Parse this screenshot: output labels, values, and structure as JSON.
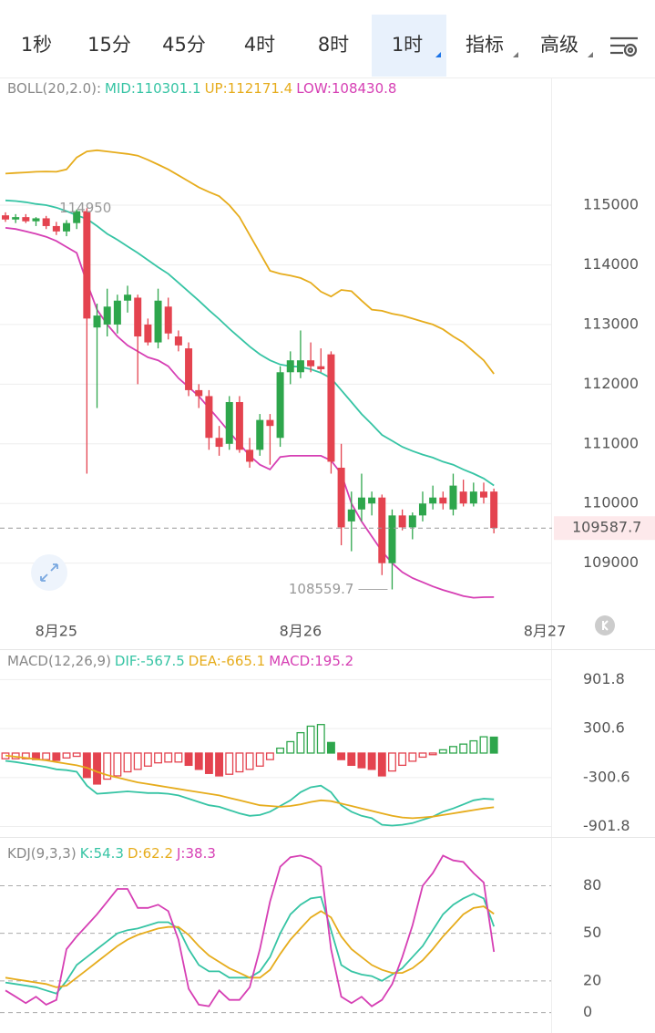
{
  "tabs": [
    "1秒",
    "15分",
    "45分",
    "4时",
    "8时",
    "1时",
    "指标",
    "高级"
  ],
  "chart_data": [
    {
      "type": "candlestick",
      "title": "BOLL(20,2.0):",
      "categories": [
        null,
        null,
        null,
        null,
        null,
        "8月25",
        null,
        null,
        null,
        null,
        null,
        null,
        null,
        null,
        null,
        null,
        null,
        null,
        null,
        null,
        null,
        null,
        null,
        null,
        null,
        null,
        null,
        null,
        null,
        "8月26",
        null,
        null,
        null,
        null,
        null,
        null,
        null,
        null,
        null,
        null,
        null,
        null,
        null,
        null,
        null,
        null,
        null,
        null,
        null,
        null,
        null,
        null,
        null,
        "8月27"
      ],
      "open": [
        114830,
        114760,
        114800,
        114730,
        114780,
        114650,
        114560,
        114700,
        114900,
        112950,
        113000,
        113000,
        113400,
        113450,
        113000,
        112700,
        113300,
        112800,
        112600,
        111900,
        111800,
        111100,
        111000,
        111700,
        110900,
        110900,
        111400,
        111100,
        112200,
        112200,
        112400,
        112300,
        112500,
        110600,
        109700,
        109900,
        110000,
        110100,
        109000,
        109800,
        109600,
        109800,
        110000,
        110100,
        109900,
        110200,
        110000,
        110200,
        110200,
        null,
        null,
        null,
        null,
        null
      ],
      "high": [
        114880,
        114850,
        114850,
        114800,
        114820,
        114720,
        114750,
        114928.6,
        114950,
        113350,
        113600,
        113500,
        113650,
        113500,
        113100,
        113600,
        113450,
        112900,
        112700,
        112000,
        111900,
        111300,
        111800,
        111800,
        111100,
        111500,
        111500,
        112300,
        112550,
        112900,
        112700,
        112600,
        112550,
        111000,
        110200,
        110500,
        110200,
        110150,
        109900,
        109900,
        109850,
        110200,
        110300,
        110200,
        110500,
        110400,
        110350,
        110350,
        110250,
        null,
        null,
        null,
        null,
        null
      ],
      "low": [
        114720,
        114700,
        114700,
        114650,
        114600,
        114500,
        114480,
        114600,
        110500,
        111600,
        112800,
        112850,
        113200,
        112000,
        112650,
        112600,
        112750,
        112550,
        111800,
        111600,
        110900,
        110800,
        110900,
        110850,
        110600,
        110800,
        110650,
        110950,
        112000,
        112100,
        112200,
        112200,
        110500,
        109300,
        109200,
        109700,
        109800,
        108800,
        108559.7,
        109550,
        109400,
        109700,
        109900,
        109900,
        109800,
        109950,
        109950,
        110000,
        109500,
        null,
        null,
        null,
        null,
        null
      ],
      "close": [
        114760,
        114800,
        114730,
        114780,
        114650,
        114560,
        114700,
        114900,
        113100,
        113150,
        113300,
        113400,
        113500,
        112800,
        112700,
        113400,
        112850,
        112650,
        111900,
        111800,
        111100,
        110950,
        111700,
        110900,
        110700,
        111400,
        111300,
        112200,
        112400,
        112400,
        112300,
        112250,
        110700,
        109600,
        109900,
        110100,
        110100,
        109000,
        109800,
        109600,
        109800,
        110000,
        110100,
        110000,
        110300,
        110000,
        110200,
        110100,
        109587.7,
        null,
        null,
        null,
        null,
        null
      ],
      "up_color": "#2ea64c",
      "down_color": "#e4434f",
      "series": [
        {
          "name": "MID:",
          "color": "#36c4a4",
          "values": [
            115080,
            115070,
            115050,
            115020,
            115000,
            114960,
            114900,
            114830,
            114770,
            114650,
            114520,
            114420,
            114310,
            114200,
            114080,
            113960,
            113850,
            113700,
            113550,
            113400,
            113240,
            113090,
            112930,
            112780,
            112630,
            112500,
            112400,
            112330,
            112300,
            112290,
            112250,
            112190,
            112100,
            111900,
            111700,
            111500,
            111330,
            111150,
            111050,
            110950,
            110880,
            110820,
            110770,
            110700,
            110650,
            110570,
            110500,
            110420,
            110301.1,
            null,
            null,
            null,
            null,
            null
          ]
        },
        {
          "name": "UP:",
          "color": "#e6ac1c",
          "values": [
            115530,
            115540,
            115550,
            115560,
            115565,
            115560,
            115600,
            115800,
            115900,
            115920,
            115900,
            115880,
            115860,
            115830,
            115760,
            115680,
            115600,
            115500,
            115400,
            115300,
            115220,
            115150,
            115000,
            114800,
            114500,
            114200,
            113900,
            113850,
            113820,
            113780,
            113700,
            113550,
            113470,
            113580,
            113560,
            113400,
            113250,
            113230,
            113180,
            113150,
            113100,
            113050,
            113000,
            112920,
            112800,
            112700,
            112550,
            112400,
            112171.4,
            null,
            null,
            null,
            null,
            null
          ]
        },
        {
          "name": "LOW:",
          "color": "#d63fb4",
          "values": [
            114620,
            114600,
            114560,
            114520,
            114470,
            114400,
            114300,
            114200,
            113700,
            113250,
            113000,
            112800,
            112650,
            112550,
            112450,
            112400,
            112300,
            112100,
            111950,
            111800,
            111600,
            111400,
            111200,
            111000,
            110800,
            110650,
            110570,
            110780,
            110800,
            110800,
            110800,
            110800,
            110720,
            110500,
            110000,
            109700,
            109450,
            109200,
            109000,
            108850,
            108750,
            108680,
            108610,
            108550,
            108500,
            108450,
            108420,
            108430,
            108430.8,
            null,
            null,
            null,
            null,
            null
          ]
        }
      ],
      "ylim": [
        108170,
        117140
      ],
      "yticks": [
        109000,
        110000,
        111000,
        112000,
        113000,
        114000,
        115000
      ],
      "grid": true
    },
    {
      "type": "macd",
      "title": "MACD(12,26,9)",
      "up_color": "#2ea64c",
      "down_color": "#e4434f",
      "series": [
        {
          "name": "DIF:",
          "color": "#36c4a4",
          "values": [
            -95,
            -110,
            -130,
            -150,
            -170,
            -200,
            -210,
            -230,
            -400,
            -500,
            -490,
            -480,
            -470,
            -480,
            -490,
            -490,
            -500,
            -520,
            -560,
            -600,
            -640,
            -660,
            -700,
            -740,
            -770,
            -760,
            -720,
            -650,
            -580,
            -480,
            -420,
            -400,
            -480,
            -640,
            -720,
            -770,
            -800,
            -880,
            -890,
            -880,
            -860,
            -820,
            -780,
            -720,
            -680,
            -630,
            -580,
            -560,
            -567.5
          ]
        },
        {
          "name": "DEA:",
          "color": "#e6ac1c",
          "values": [
            -30,
            -45,
            -60,
            -75,
            -90,
            -110,
            -130,
            -150,
            -180,
            -230,
            -270,
            -300,
            -330,
            -360,
            -380,
            -400,
            -420,
            -440,
            -460,
            -480,
            -500,
            -520,
            -550,
            -580,
            -610,
            -640,
            -650,
            -660,
            -650,
            -630,
            -600,
            -580,
            -590,
            -620,
            -650,
            -680,
            -710,
            -740,
            -770,
            -790,
            -800,
            -790,
            -780,
            -760,
            -740,
            -720,
            -700,
            -680,
            -665.1
          ]
        },
        {
          "name": "MACD:",
          "color": "#d63fb4",
          "type": "bar",
          "values": [
            -70,
            -70,
            -70,
            -80,
            -80,
            -90,
            -60,
            -40,
            -300,
            -380,
            -320,
            -280,
            -230,
            -200,
            -160,
            -120,
            -110,
            -110,
            -150,
            -200,
            -250,
            -280,
            -260,
            -230,
            -200,
            -160,
            -80,
            60,
            140,
            250,
            330,
            350,
            130,
            -80,
            -150,
            -180,
            -200,
            -280,
            -220,
            -150,
            -100,
            -50,
            -20,
            40,
            80,
            110,
            150,
            200,
            195.2
          ]
        }
      ],
      "ylim": [
        -1030,
        1130
      ],
      "yticks": [
        -901.8,
        -300.6,
        300.6,
        901.8
      ],
      "grid": true
    },
    {
      "type": "kdj",
      "title": "KDJ(9,3,3)",
      "series": [
        {
          "name": "K:",
          "color": "#36c4a4",
          "values": [
            19,
            18,
            17,
            16,
            14,
            12,
            20,
            30,
            35,
            40,
            45,
            50,
            52,
            53,
            55,
            57,
            57,
            53,
            40,
            30,
            26,
            26,
            22,
            22,
            22,
            26,
            35,
            50,
            62,
            68,
            72,
            73,
            52,
            30,
            26,
            24,
            23,
            20,
            24,
            28,
            35,
            42,
            52,
            62,
            68,
            72,
            75,
            72,
            54.3
          ]
        },
        {
          "name": "D:",
          "color": "#e6ac1c",
          "values": [
            22,
            21,
            20,
            19,
            18,
            16,
            17,
            22,
            27,
            32,
            37,
            42,
            46,
            49,
            51,
            53,
            54,
            54,
            49,
            42,
            36,
            32,
            28,
            25,
            22,
            22,
            27,
            37,
            46,
            53,
            60,
            64,
            60,
            48,
            40,
            35,
            30,
            27,
            25,
            25,
            28,
            33,
            40,
            48,
            55,
            62,
            66,
            67,
            62.2
          ]
        },
        {
          "name": "J:",
          "color": "#d63fb4",
          "values": [
            14,
            10,
            6,
            10,
            5,
            8,
            40,
            48,
            55,
            62,
            70,
            78,
            78,
            66,
            66,
            68,
            64,
            46,
            15,
            5,
            4,
            14,
            8,
            8,
            16,
            40,
            70,
            92,
            98,
            99,
            97,
            92,
            40,
            10,
            6,
            10,
            4,
            8,
            18,
            35,
            55,
            80,
            88,
            99,
            96,
            95,
            88,
            82,
            38.3
          ]
        }
      ],
      "ylim": [
        -10,
        105
      ],
      "yticks": [
        0,
        20,
        50,
        80
      ],
      "grid": true,
      "grid_style": "dashed"
    }
  ]
}
